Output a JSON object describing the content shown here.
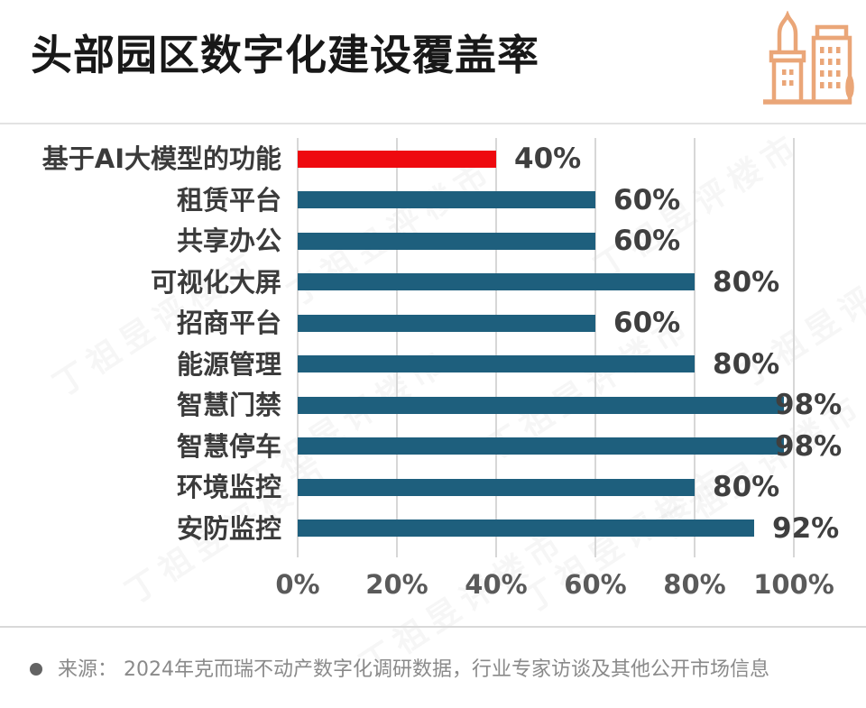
{
  "header": {
    "title": "头部园区数字化建设覆盖率"
  },
  "icon": {
    "name": "buildings-icon",
    "color": "#EAA678"
  },
  "chart_data": {
    "type": "bar",
    "orientation": "horizontal",
    "title": "头部园区数字化建设覆盖率",
    "categories": [
      "基于AI大模型的功能",
      "租赁平台",
      "共享办公",
      "可视化大屏",
      "招商平台",
      "能源管理",
      "智慧门禁",
      "智慧停车",
      "环境监控",
      "安防监控"
    ],
    "values": [
      40,
      60,
      60,
      80,
      60,
      80,
      98,
      98,
      80,
      92
    ],
    "value_labels": [
      "40%",
      "60%",
      "60%",
      "80%",
      "60%",
      "80%",
      "98%",
      "98%",
      "80%",
      "92%"
    ],
    "x_tick_values": [
      0,
      20,
      40,
      60,
      80,
      100
    ],
    "x_tick_labels": [
      "0%",
      "20%",
      "40%",
      "60%",
      "80%",
      "100%"
    ],
    "xlim": [
      0,
      100
    ],
    "grid": true,
    "legend": "none",
    "bar_color": "#1E5F7D",
    "highlight_color": "#EE0A0F",
    "highlight_index": 0,
    "category_label_color": "#3B3B3B",
    "value_label_color": "#3F3F3F",
    "axis_tick_color": "#5A5A5A",
    "gridline_color": "#D7D7D7"
  },
  "footer": {
    "source": "来源： 2024年克而瑞不动产数字化调研数据，行业专家访谈及其他公开市场信息"
  },
  "watermark": {
    "text": "丁祖昱评楼市"
  }
}
